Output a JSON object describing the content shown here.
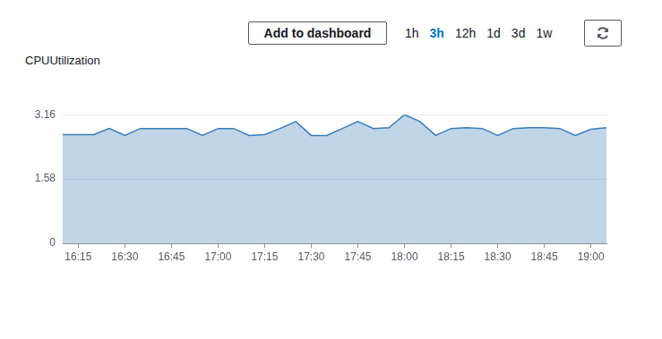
{
  "toolbar": {
    "button": "Add to dashboard",
    "ranges": [
      "1h",
      "3h",
      "12h",
      "1d",
      "3d",
      "1w"
    ],
    "selected": "3h"
  },
  "chart_data": {
    "type": "area",
    "title": "CPUUtilization",
    "categories": [
      null,
      "16:15",
      null,
      null,
      "16:30",
      null,
      null,
      "16:45",
      null,
      null,
      "17:00",
      null,
      null,
      "17:15",
      null,
      null,
      "17:30",
      null,
      null,
      "17:45",
      null,
      null,
      "18:00",
      null,
      null,
      "18:15",
      null,
      null,
      "18:30",
      null,
      null,
      "18:45",
      null,
      null,
      "19:00",
      null
    ],
    "values": [
      2.67,
      2.67,
      2.67,
      2.82,
      2.65,
      2.82,
      2.82,
      2.82,
      2.82,
      2.65,
      2.82,
      2.82,
      2.65,
      2.67,
      2.82,
      2.99,
      2.65,
      2.65,
      2.82,
      2.99,
      2.82,
      2.84,
      3.16,
      2.99,
      2.65,
      2.82,
      2.84,
      2.82,
      2.65,
      2.82,
      2.84,
      2.84,
      2.82,
      2.65,
      2.8,
      2.84
    ],
    "color": "#3a7cb8",
    "ylim": [
      0,
      3.16
    ],
    "yticks": [
      0,
      1.58,
      3.16
    ],
    "grid": true
  }
}
